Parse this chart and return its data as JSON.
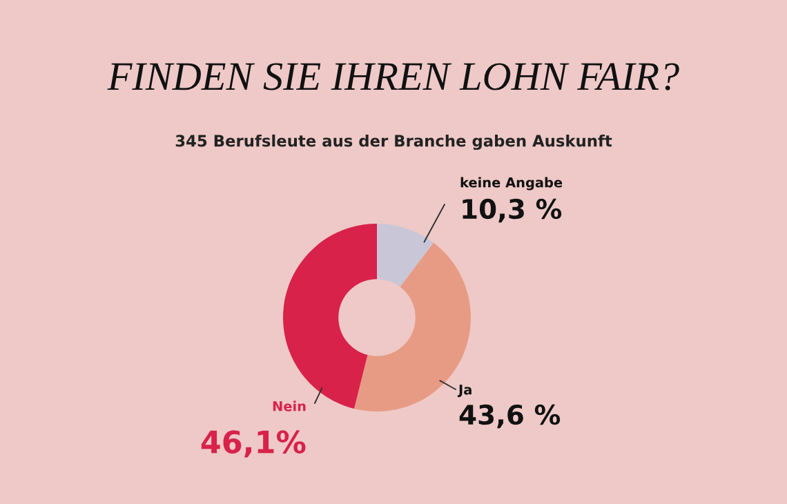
{
  "chart_data": {
    "type": "donut",
    "title": "FINDEN SIE IHREN LOHN FAIR?",
    "subtitle": "345 Berufsleute aus der Branche gaben Auskunft",
    "categories": [
      "keine Angabe",
      "Ja",
      "Nein"
    ],
    "values": [
      10.3,
      43.6,
      46.1
    ],
    "colors": [
      "#c9c7d7",
      "#e89b84",
      "#d8224a"
    ],
    "value_labels": [
      "10,3 %",
      "43,6 %",
      "46,1%"
    ],
    "legend": false
  }
}
